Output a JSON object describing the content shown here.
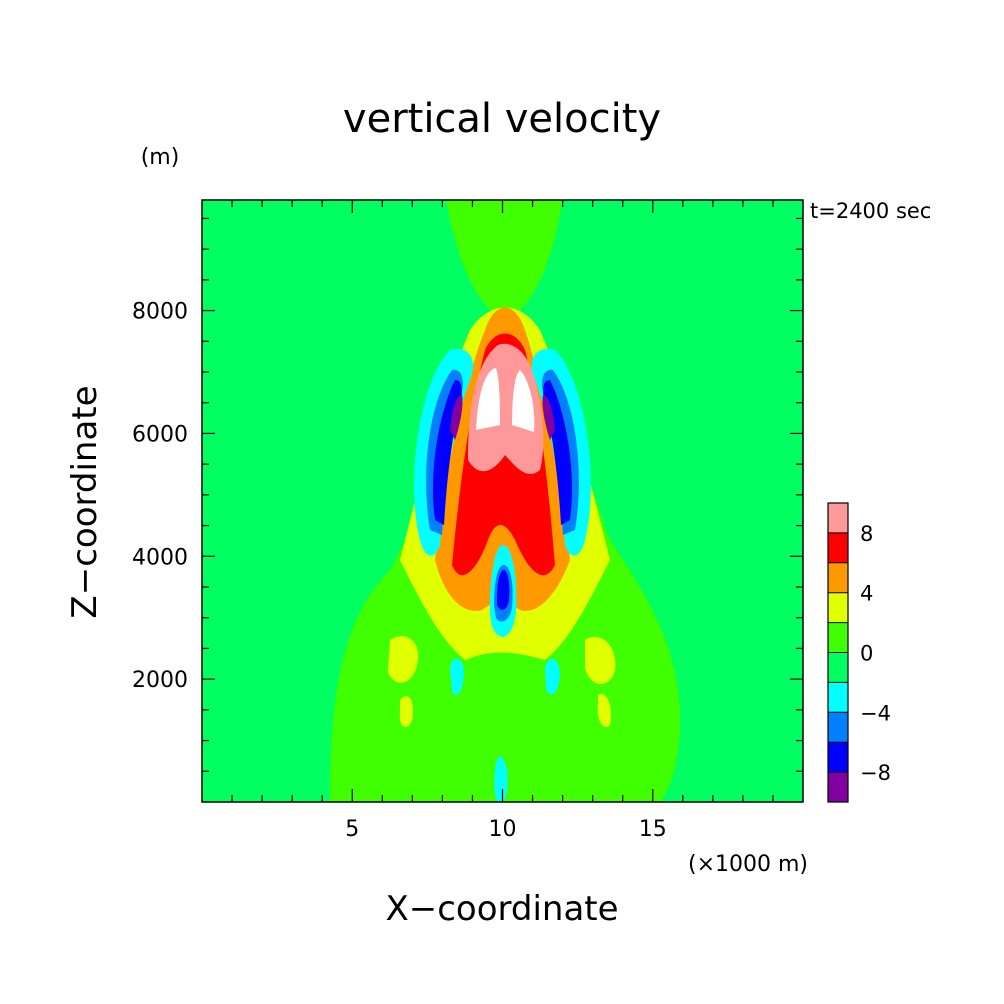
{
  "chart_data": {
    "type": "heatmap",
    "title": "vertical velocity",
    "ylabel_unit": "(m)",
    "xlabel": "X−coordinate",
    "ylabel": "Z−coordinate",
    "xlabel_unit": "(×1000 m)",
    "time_label": "t=2400 sec",
    "xlim": [
      0,
      20
    ],
    "ylim": [
      0,
      9800
    ],
    "x_ticks": [
      5,
      10,
      15
    ],
    "y_ticks": [
      2000,
      4000,
      6000,
      8000
    ],
    "x_tick_labels": [
      "5",
      "10",
      "15"
    ],
    "y_tick_labels": [
      "2000",
      "4000",
      "6000",
      "8000"
    ],
    "colorbar": {
      "levels": [
        -10,
        -8,
        -6,
        -4,
        -2,
        0,
        2,
        4,
        6,
        8,
        10
      ],
      "colors": [
        "#8000a0",
        "#0000ff",
        "#0080ff",
        "#00ffff",
        "#00ff60",
        "#40ff00",
        "#e0ff00",
        "#ff9900",
        "#ff0000",
        "#ff9999"
      ],
      "tick_labels": [
        "8",
        "4",
        "0",
        "−4",
        "−8"
      ],
      "tick_values": [
        8,
        4,
        0,
        -4,
        -8
      ]
    },
    "background_value_color": "#00ff60",
    "features": [
      {
        "label": "updraft core",
        "x": 10,
        "z": 6400,
        "value": 10
      },
      {
        "label": "left downdraft",
        "x": 8.3,
        "z": 5600,
        "value": -8
      },
      {
        "label": "right downdraft",
        "x": 11.7,
        "z": 5600,
        "value": -8
      },
      {
        "label": "mid-level downdraft",
        "x": 10,
        "z": 3500,
        "value": -8
      }
    ]
  }
}
